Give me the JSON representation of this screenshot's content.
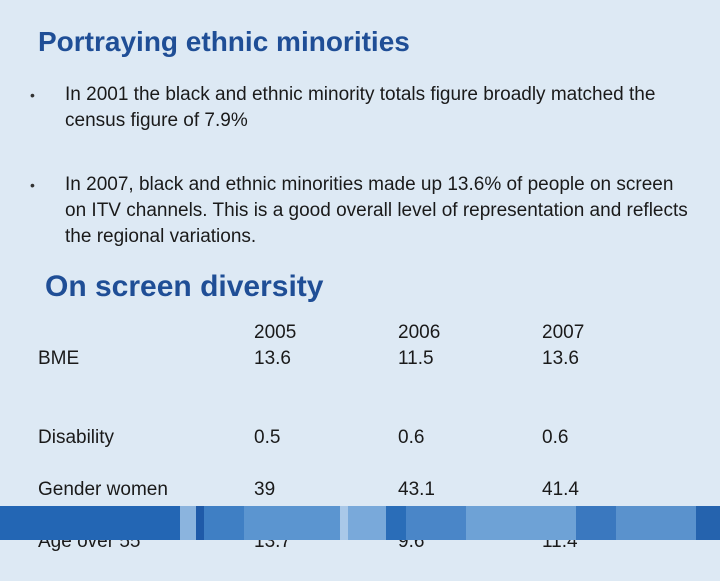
{
  "title": "Portraying ethnic minorities",
  "bullets": [
    "In 2001 the black and ethnic minority totals figure broadly matched the census figure of 7.9%",
    "In 2007, black and ethnic minorities made up 13.6% of people on screen on ITV channels. This is a good overall level of representation and reflects the regional variations."
  ],
  "bullet_marker": "•",
  "subtitle": "On screen diversity",
  "table": {
    "headers": [
      "2005",
      "2006",
      "2007"
    ],
    "rows": [
      {
        "labels": [
          "BME"
        ],
        "values": [
          [
            "13.6"
          ],
          [
            "11.5"
          ],
          [
            "13.6"
          ]
        ]
      },
      {
        "labels": [
          "Disability",
          "Gender women",
          "Age over 55"
        ],
        "values": [
          [
            "0.5",
            "39",
            "13.7"
          ],
          [
            "0.6",
            "43.1",
            "9.6"
          ],
          [
            "0.6",
            "41.4",
            "11.4"
          ]
        ]
      }
    ]
  },
  "colors": {
    "background": "#dde9f4",
    "heading": "#1f4e96",
    "footer": "#1f5aa8"
  }
}
